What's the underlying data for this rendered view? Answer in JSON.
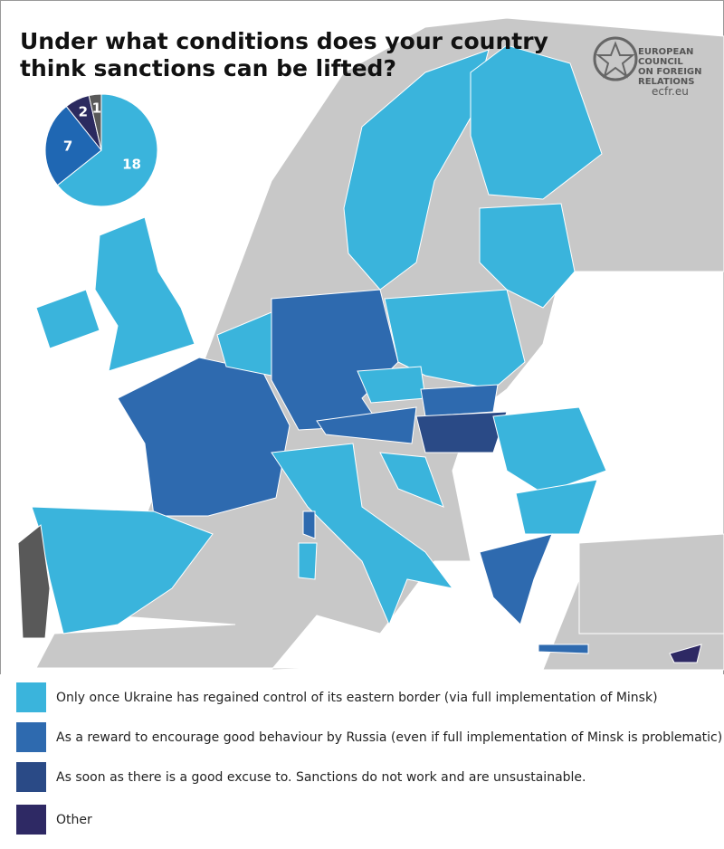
{
  "header": {
    "title_lines": [
      "Under what conditions does your country",
      "think sanctions can be lifted?"
    ]
  },
  "logo": {
    "lines": [
      "EUROPEAN",
      "COUNCIL",
      "ON FOREIGN",
      "RELATIONS",
      "ecfr.eu"
    ]
  },
  "chart_data": {
    "type": "pie",
    "values": [
      18,
      7,
      2,
      1
    ],
    "colors": [
      "#3ab4dc",
      "#1f67b3",
      "#2b2a5f",
      "#595959"
    ]
  },
  "legend": {
    "items": [
      {
        "color": "#3ab4dc",
        "label": "Only once Ukraine has regained control of its eastern border (via full implementation of Minsk)"
      },
      {
        "color": "#2e6aaf",
        "label": "As a reward to encourage good behaviour by Russia (even if full implementation of Minsk is problematic)"
      },
      {
        "color": "#2a4a86",
        "label": "As soon as there is a good excuse to. Sanctions do not work and are unsustainable."
      },
      {
        "color": "#2e2964",
        "label": "Other"
      }
    ]
  }
}
